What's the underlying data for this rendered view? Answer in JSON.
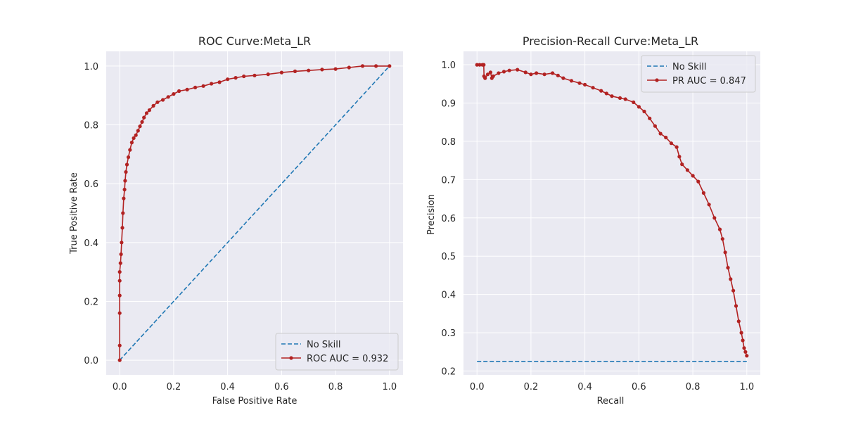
{
  "chart_data": [
    {
      "type": "line",
      "title": "ROC Curve:Meta_LR",
      "xlabel": "False Positive Rate",
      "ylabel": "True Positive Rate",
      "xlim": [
        -0.05,
        1.05
      ],
      "ylim": [
        -0.05,
        1.05
      ],
      "xticks": [
        "0.0",
        "0.2",
        "0.4",
        "0.6",
        "0.8",
        "1.0"
      ],
      "yticks": [
        "0.0",
        "0.2",
        "0.4",
        "0.6",
        "0.8",
        "1.0"
      ],
      "grid": true,
      "legend_position": "lower-right",
      "series": [
        {
          "name": "No Skill",
          "color": "#1f77b4",
          "style": "dashed",
          "x": [
            0,
            1
          ],
          "y": [
            0,
            1
          ]
        },
        {
          "name": "ROC AUC = 0.932",
          "color": "#b22222",
          "style": "solid-marker",
          "x": [
            0.0,
            0.0,
            0.0,
            0.0,
            0.0,
            0.0,
            0.003,
            0.005,
            0.007,
            0.01,
            0.012,
            0.015,
            0.018,
            0.02,
            0.023,
            0.027,
            0.032,
            0.038,
            0.045,
            0.052,
            0.06,
            0.068,
            0.075,
            0.083,
            0.09,
            0.1,
            0.11,
            0.125,
            0.14,
            0.16,
            0.18,
            0.2,
            0.22,
            0.25,
            0.28,
            0.31,
            0.34,
            0.37,
            0.4,
            0.43,
            0.46,
            0.5,
            0.55,
            0.6,
            0.65,
            0.7,
            0.75,
            0.8,
            0.85,
            0.9,
            0.95,
            1.0
          ],
          "y": [
            0.0,
            0.05,
            0.16,
            0.22,
            0.27,
            0.3,
            0.33,
            0.36,
            0.4,
            0.45,
            0.5,
            0.55,
            0.58,
            0.61,
            0.64,
            0.665,
            0.69,
            0.715,
            0.74,
            0.755,
            0.765,
            0.78,
            0.795,
            0.81,
            0.825,
            0.84,
            0.85,
            0.865,
            0.877,
            0.885,
            0.895,
            0.905,
            0.915,
            0.92,
            0.927,
            0.932,
            0.94,
            0.945,
            0.955,
            0.96,
            0.965,
            0.968,
            0.972,
            0.978,
            0.982,
            0.985,
            0.988,
            0.99,
            0.995,
            1.0,
            1.0,
            1.0
          ]
        }
      ]
    },
    {
      "type": "line",
      "title": "Precision-Recall Curve:Meta_LR",
      "xlabel": "Recall",
      "ylabel": "Precision",
      "xlim": [
        -0.05,
        1.05
      ],
      "ylim": [
        0.19,
        1.035
      ],
      "xticks": [
        "0.0",
        "0.2",
        "0.4",
        "0.6",
        "0.8",
        "1.0"
      ],
      "yticks": [
        "0.2",
        "0.3",
        "0.4",
        "0.5",
        "0.6",
        "0.7",
        "0.8",
        "0.9",
        "1.0"
      ],
      "grid": true,
      "legend_position": "upper-right",
      "series": [
        {
          "name": "No Skill",
          "color": "#1f77b4",
          "style": "dashed",
          "x": [
            0,
            1
          ],
          "y": [
            0.225,
            0.225
          ]
        },
        {
          "name": "PR AUC = 0.847",
          "color": "#b22222",
          "style": "solid-marker",
          "x": [
            0.0,
            0.01,
            0.02,
            0.025,
            0.026,
            0.03,
            0.04,
            0.05,
            0.055,
            0.06,
            0.08,
            0.1,
            0.12,
            0.15,
            0.18,
            0.2,
            0.22,
            0.25,
            0.28,
            0.3,
            0.32,
            0.35,
            0.38,
            0.4,
            0.43,
            0.46,
            0.48,
            0.5,
            0.53,
            0.55,
            0.58,
            0.6,
            0.62,
            0.64,
            0.66,
            0.68,
            0.7,
            0.72,
            0.74,
            0.75,
            0.76,
            0.78,
            0.8,
            0.82,
            0.84,
            0.86,
            0.88,
            0.9,
            0.91,
            0.92,
            0.93,
            0.94,
            0.95,
            0.96,
            0.97,
            0.98,
            0.985,
            0.99,
            0.995,
            1.0
          ],
          "y": [
            1.0,
            1.0,
            1.0,
            1.0,
            0.97,
            0.965,
            0.975,
            0.98,
            0.965,
            0.97,
            0.978,
            0.982,
            0.985,
            0.987,
            0.98,
            0.975,
            0.978,
            0.975,
            0.978,
            0.972,
            0.965,
            0.958,
            0.952,
            0.948,
            0.94,
            0.932,
            0.925,
            0.918,
            0.913,
            0.91,
            0.902,
            0.89,
            0.878,
            0.86,
            0.84,
            0.82,
            0.81,
            0.795,
            0.785,
            0.76,
            0.74,
            0.725,
            0.71,
            0.695,
            0.665,
            0.635,
            0.6,
            0.57,
            0.545,
            0.51,
            0.47,
            0.44,
            0.41,
            0.37,
            0.33,
            0.3,
            0.28,
            0.26,
            0.25,
            0.24
          ]
        }
      ]
    }
  ]
}
